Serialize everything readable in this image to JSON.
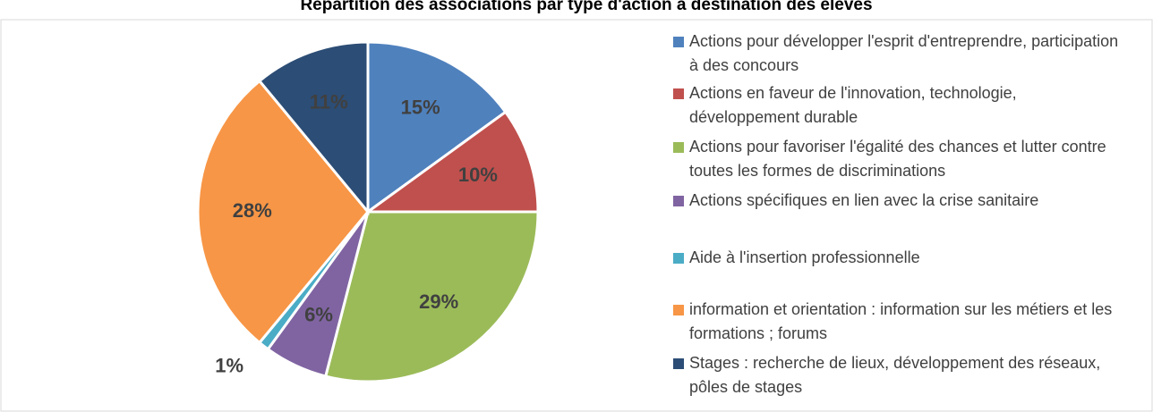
{
  "chart_data": {
    "type": "pie",
    "title": "Répartition des associations par type d'action à destination des élèves",
    "categories": [
      "Actions pour développer l'esprit d'entreprendre, participation à des concours",
      "Actions en faveur de l'innovation, technologie, développement durable",
      "Actions pour favoriser l'égalité des chances et lutter contre toutes les formes de discriminations",
      "Actions spécifiques en lien avec la crise sanitaire",
      "Aide à l'insertion professionnelle",
      "information et orientation : information sur les métiers et les formations ; forums",
      "Stages : recherche de lieux, développement des réseaux, pôles de stages"
    ],
    "values": [
      15,
      10,
      29,
      6,
      1,
      28,
      11
    ],
    "value_labels": [
      "15%",
      "10%",
      "29%",
      "6%",
      "1%",
      "28%",
      "11%"
    ],
    "colors": [
      "#4f81bd",
      "#c0504d",
      "#9bbb59",
      "#8064a2",
      "#4bacc6",
      "#f79646",
      "#2c4d75"
    ],
    "legend": "right"
  }
}
